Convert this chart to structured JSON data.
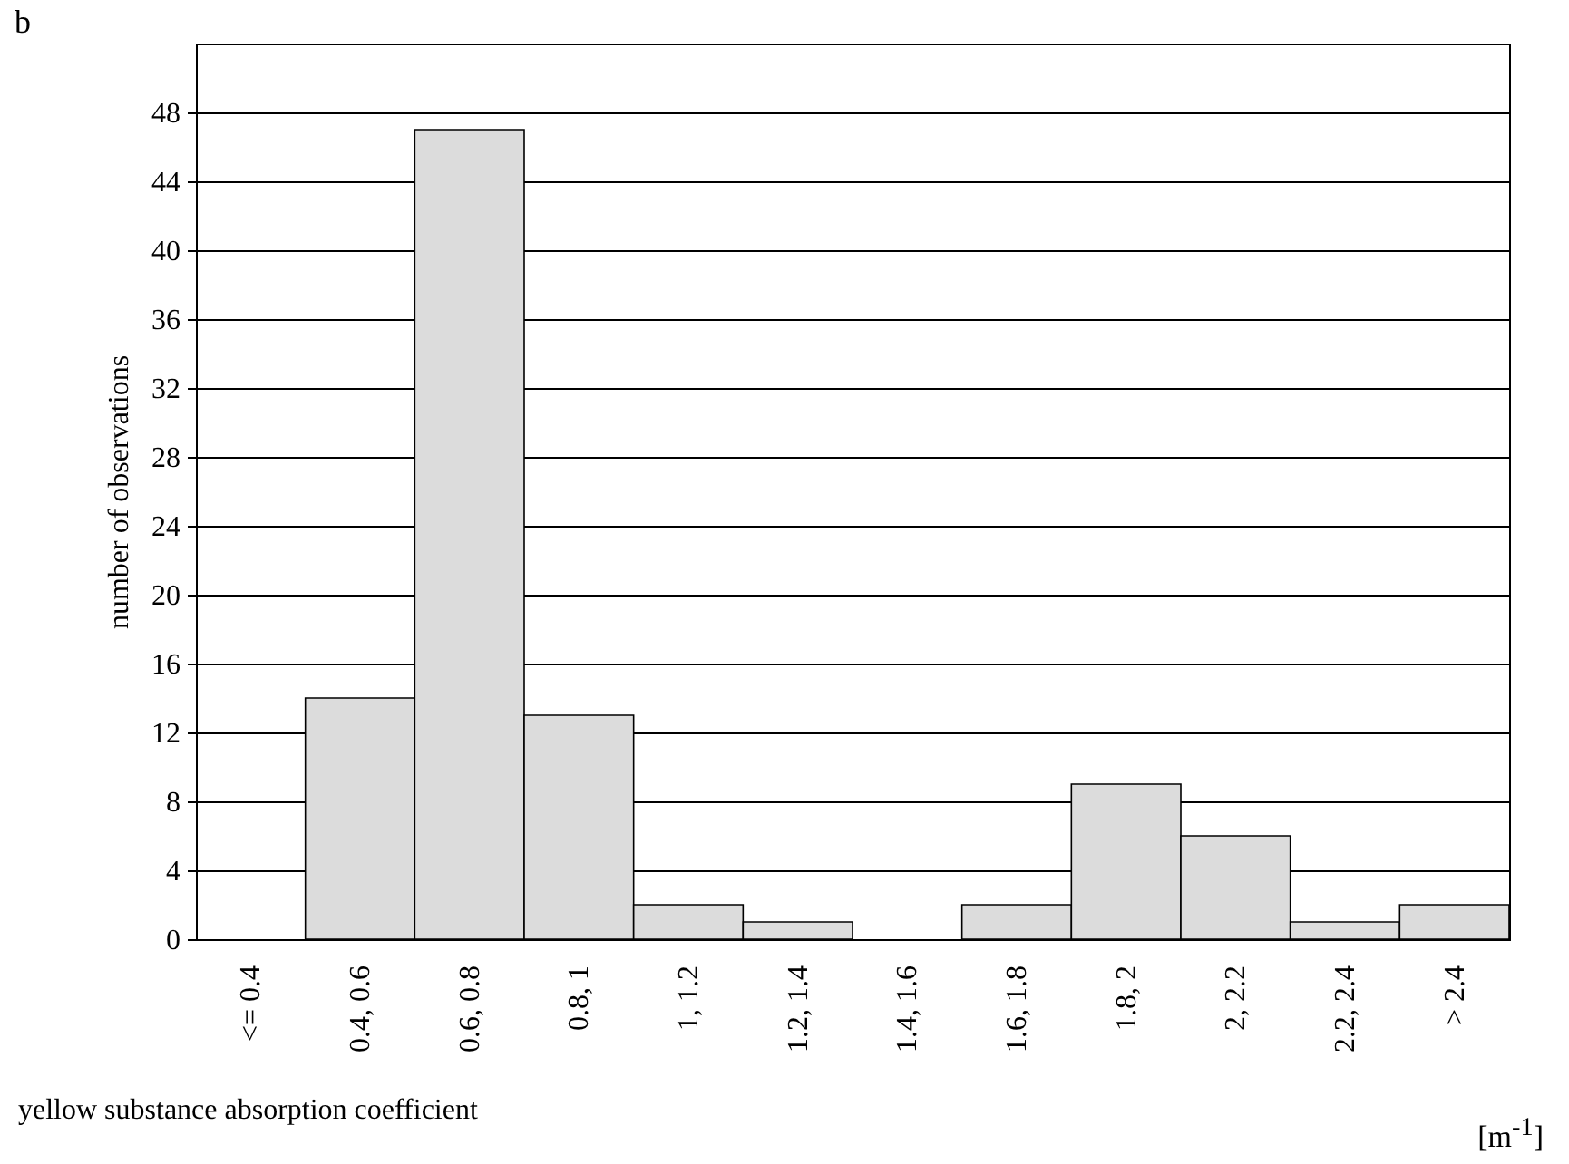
{
  "chart_data": {
    "type": "bar",
    "title": "b",
    "xlabel": "yellow substance absorption coefficient",
    "ylabel": "number of observations",
    "categories": [
      "<= 0.4",
      "0.4, 0.6",
      "0.6, 0.8",
      "0.8, 1",
      "1, 1.2",
      "1.2, 1.4",
      "1.4, 1.6",
      "1.6, 1.8",
      "1.8, 2",
      "2, 2.2",
      "2.2, 2.4",
      "> 2.4"
    ],
    "values": [
      0,
      14,
      47,
      13,
      2,
      1,
      0,
      2,
      9,
      6,
      1,
      2
    ],
    "color": "#dcdcdc",
    "ylim": [
      0,
      52
    ],
    "yticks": [
      0,
      4,
      8,
      12,
      16,
      20,
      24,
      28,
      32,
      36,
      40,
      44,
      48
    ],
    "grid": "y",
    "annotations": [
      "[m$^{-1}$]"
    ]
  }
}
